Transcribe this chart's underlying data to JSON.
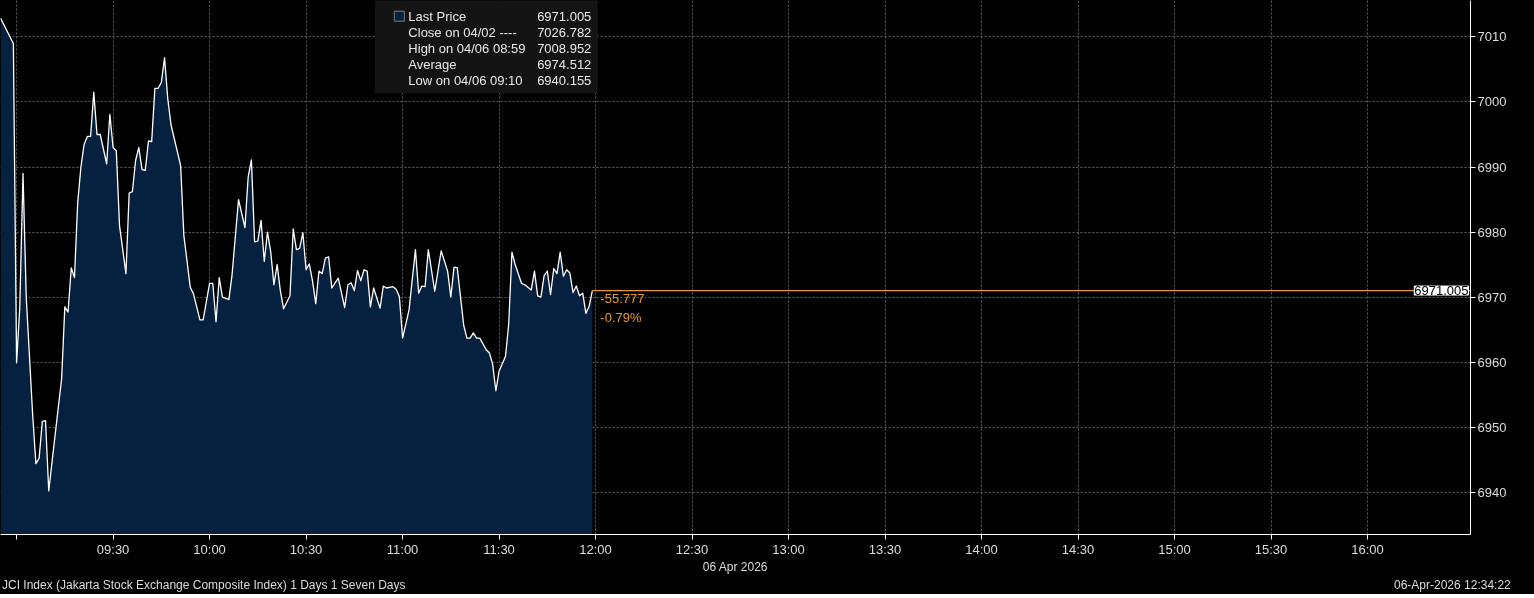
{
  "chart_data": {
    "type": "area",
    "title": "JCI Index (Jakarta Stock Exchange Composite Index) 1 Days 1 Seven Days",
    "subtitle": "06-Apr-2026 12:34:22",
    "xlabel": "06 Apr 2026",
    "x": [
      "2026-04-06T08:55",
      "2026-04-06T08:59",
      "2026-04-06T09:00",
      "2026-04-06T09:01",
      "2026-04-06T09:02",
      "2026-04-06T09:03",
      "2026-04-06T09:05",
      "2026-04-06T09:06",
      "2026-04-06T09:07",
      "2026-04-06T09:08",
      "2026-04-06T09:09",
      "2026-04-06T09:10",
      "2026-04-06T09:12",
      "2026-04-06T09:14",
      "2026-04-06T09:15",
      "2026-04-06T09:16",
      "2026-04-06T09:17",
      "2026-04-06T09:18",
      "2026-04-06T09:19",
      "2026-04-06T09:20",
      "2026-04-06T09:21",
      "2026-04-06T09:22",
      "2026-04-06T09:23",
      "2026-04-06T09:24",
      "2026-04-06T09:25",
      "2026-04-06T09:26",
      "2026-04-06T09:28",
      "2026-04-06T09:29",
      "2026-04-06T09:30",
      "2026-04-06T09:31",
      "2026-04-06T09:32",
      "2026-04-06T09:34",
      "2026-04-06T09:35",
      "2026-04-06T09:36",
      "2026-04-06T09:37",
      "2026-04-06T09:38",
      "2026-04-06T09:39",
      "2026-04-06T09:40",
      "2026-04-06T09:41",
      "2026-04-06T09:42",
      "2026-04-06T09:43",
      "2026-04-06T09:44",
      "2026-04-06T09:45",
      "2026-04-06T09:46",
      "2026-04-06T09:47",
      "2026-04-06T09:48",
      "2026-04-06T09:51",
      "2026-04-06T09:52",
      "2026-04-06T09:54",
      "2026-04-06T09:55",
      "2026-04-06T09:57",
      "2026-04-06T09:58",
      "2026-04-06T10:00",
      "2026-04-06T10:01",
      "2026-04-06T10:02",
      "2026-04-06T10:03",
      "2026-04-06T10:04",
      "2026-04-06T10:06",
      "2026-04-06T10:07",
      "2026-04-06T10:09",
      "2026-04-06T10:11",
      "2026-04-06T10:12",
      "2026-04-06T10:13",
      "2026-04-06T10:14",
      "2026-04-06T10:15",
      "2026-04-06T10:16",
      "2026-04-06T10:17",
      "2026-04-06T10:18",
      "2026-04-06T10:19",
      "2026-04-06T10:20",
      "2026-04-06T10:21",
      "2026-04-06T10:22",
      "2026-04-06T10:23",
      "2026-04-06T10:24",
      "2026-04-06T10:25",
      "2026-04-06T10:26",
      "2026-04-06T10:27",
      "2026-04-06T10:28",
      "2026-04-06T10:29",
      "2026-04-06T10:30",
      "2026-04-06T10:31",
      "2026-04-06T10:32",
      "2026-04-06T10:33",
      "2026-04-06T10:34",
      "2026-04-06T10:35",
      "2026-04-06T10:36",
      "2026-04-06T10:37",
      "2026-04-06T10:38",
      "2026-04-06T10:40",
      "2026-04-06T10:42",
      "2026-04-06T10:43",
      "2026-04-06T10:44",
      "2026-04-06T10:45",
      "2026-04-06T10:46",
      "2026-04-06T10:47",
      "2026-04-06T10:48",
      "2026-04-06T10:49",
      "2026-04-06T10:50",
      "2026-04-06T10:51",
      "2026-04-06T10:53",
      "2026-04-06T10:54",
      "2026-04-06T10:55",
      "2026-04-06T10:57",
      "2026-04-06T10:58",
      "2026-04-06T10:59",
      "2026-04-06T11:00",
      "2026-04-06T11:02",
      "2026-04-06T11:04",
      "2026-04-06T11:05",
      "2026-04-06T11:06",
      "2026-04-06T11:07",
      "2026-04-06T11:08",
      "2026-04-06T11:10",
      "2026-04-06T11:12",
      "2026-04-06T11:14",
      "2026-04-06T11:15",
      "2026-04-06T11:16",
      "2026-04-06T11:17",
      "2026-04-06T11:19",
      "2026-04-06T11:20",
      "2026-04-06T11:21",
      "2026-04-06T11:22",
      "2026-04-06T11:23",
      "2026-04-06T11:24",
      "2026-04-06T11:26",
      "2026-04-06T11:27",
      "2026-04-06T11:28",
      "2026-04-06T11:29",
      "2026-04-06T11:30",
      "2026-04-06T11:32",
      "2026-04-06T11:33",
      "2026-04-06T11:34",
      "2026-04-06T11:35",
      "2026-04-06T11:37",
      "2026-04-06T11:38",
      "2026-04-06T11:40",
      "2026-04-06T11:41",
      "2026-04-06T11:42",
      "2026-04-06T11:43",
      "2026-04-06T11:44",
      "2026-04-06T11:45",
      "2026-04-06T11:46",
      "2026-04-06T11:47",
      "2026-04-06T11:48",
      "2026-04-06T11:49",
      "2026-04-06T11:50",
      "2026-04-06T11:51",
      "2026-04-06T11:52",
      "2026-04-06T11:53",
      "2026-04-06T11:54",
      "2026-04-06T11:55",
      "2026-04-06T11:56",
      "2026-04-06T11:57",
      "2026-04-06T11:58",
      "2026-04-06T11:59"
    ],
    "series": [
      {
        "name": "Last Price",
        "color": "#06203f",
        "values": [
          7012.9,
          7009.0,
          6959.9,
          6968.5,
          6989.0,
          6970.0,
          6951.9,
          6944.4,
          6945.2,
          6950.9,
          6951.0,
          6940.2,
          6948.9,
          6957.4,
          6968.5,
          6967.7,
          6974.5,
          6973.0,
          6984.5,
          6990.0,
          6993.5,
          6994.7,
          6994.7,
          7001.5,
          6995.0,
          6995.0,
          6990.5,
          6998.1,
          6993.0,
          6992.5,
          6981.0,
          6973.6,
          6986.0,
          6986.2,
          6991.0,
          6993.0,
          6989.6,
          6989.5,
          6994.0,
          6993.9,
          7002.1,
          7002.1,
          7003.0,
          7006.8,
          7000.5,
          6996.5,
          6990.2,
          6979.5,
          6971.5,
          6970.5,
          6966.5,
          6966.5,
          6972.1,
          6972.1,
          6966.2,
          6973.0,
          6970.0,
          6969.6,
          6973.5,
          6985.0,
          6980.7,
          6988.5,
          6991.1,
          6978.5,
          6978.6,
          6981.8,
          6975.5,
          6980.0,
          6977.0,
          6971.9,
          6975.0,
          6971.0,
          6968.2,
          6969.2,
          6970.2,
          6980.5,
          6977.3,
          6977.5,
          6979.9,
          6974.2,
          6975.1,
          6972.5,
          6969.0,
          6974.0,
          6973.6,
          6976.0,
          6976.2,
          6971.4,
          6972.9,
          6968.4,
          6971.9,
          6972.2,
          6971.0,
          6974.1,
          6972.5,
          6974.2,
          6974.0,
          6968.5,
          6971.4,
          6968.3,
          6971.7,
          6971.4,
          6971.6,
          6971.2,
          6970.1,
          6963.7,
          6968.0,
          6977.3,
          6970.6,
          6971.7,
          6971.6,
          6977.3,
          6970.9,
          6977.1,
          6974.0,
          6970.0,
          6974.6,
          6974.5,
          6965.7,
          6963.7,
          6963.7,
          6964.5,
          6963.7,
          6963.7,
          6961.9,
          6961.4,
          6959.7,
          6955.6,
          6958.6,
          6960.9,
          6965.9,
          6976.9,
          6975.0,
          6972.1,
          6971.9,
          6971.1,
          6974.0,
          6970.2,
          6970.0,
          6973.3,
          6974.0,
          6970.4,
          6974.4,
          6973.6,
          6976.9,
          6973.2,
          6974.2,
          6973.7,
          6970.7,
          6971.7,
          6970.2,
          6970.6,
          6967.5,
          6968.6,
          6971.0
        ]
      }
    ],
    "xlim": [
      "2026-04-06T08:55",
      "2026-04-06T16:32"
    ],
    "xticks": [
      {
        "value": "2026-04-06T09:00",
        "label": null
      },
      {
        "value": "2026-04-06T09:30",
        "label": "09:30"
      },
      {
        "value": "2026-04-06T10:00",
        "label": "10:00"
      },
      {
        "value": "2026-04-06T10:30",
        "label": "10:30"
      },
      {
        "value": "2026-04-06T11:00",
        "label": "11:00"
      },
      {
        "value": "2026-04-06T11:30",
        "label": "11:30"
      },
      {
        "value": "2026-04-06T12:00",
        "label": "12:00"
      },
      {
        "value": "2026-04-06T12:30",
        "label": "12:30"
      },
      {
        "value": "2026-04-06T13:00",
        "label": "13:00"
      },
      {
        "value": "2026-04-06T13:30",
        "label": "13:30"
      },
      {
        "value": "2026-04-06T14:00",
        "label": "14:00"
      },
      {
        "value": "2026-04-06T14:30",
        "label": "14:30"
      },
      {
        "value": "2026-04-06T15:00",
        "label": "15:00"
      },
      {
        "value": "2026-04-06T15:30",
        "label": "15:30"
      },
      {
        "value": "2026-04-06T16:00",
        "label": "16:00"
      }
    ],
    "ylim": [
      6933.5,
      7015.6
    ],
    "yticks": [
      6940,
      6950,
      6960,
      6970,
      6980,
      6990,
      7000,
      7010
    ],
    "grid": true,
    "legend": "top",
    "ref_lines": [
      {
        "axis": "y",
        "value": 6971.005,
        "label": "6971.005",
        "color": "#e8962e"
      }
    ],
    "annotations": [
      "6971.005",
      "Close on 04/02 ----",
      "7026.782",
      "High on 04/06 08:59",
      "7008.952",
      "Average",
      "6974.512",
      "Low on 04/06 09:10",
      "6940.155",
      {
        "text": "-55.777",
        "x": "2026-04-06T11:59",
        "y": 6971.005
      },
      {
        "text": "-0.79%",
        "x": "2026-04-06T11:59",
        "y": 6971.005
      }
    ]
  }
}
